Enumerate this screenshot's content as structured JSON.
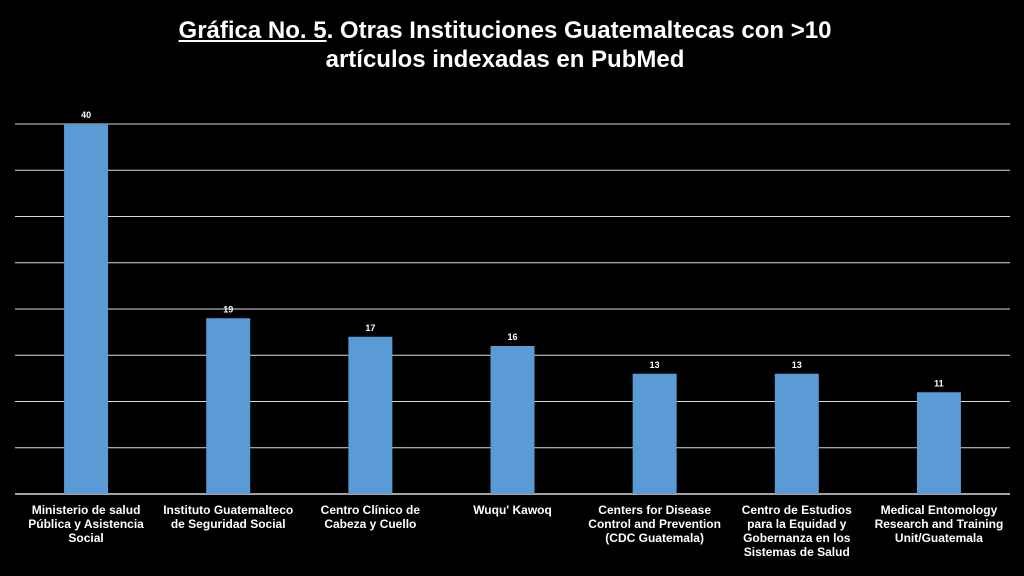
{
  "title": {
    "part_underlined": "Gráfica No. 5",
    "part_line1_rest": ". Otras Instituciones Guatemaltecas con >10",
    "line2": "artículos indexadas en PubMed"
  },
  "colors": {
    "background": "#000000",
    "bar": "#5b9bd5",
    "grid": "#d9d9d9",
    "text": "#ffffff"
  },
  "chart_data": {
    "type": "bar",
    "title": "Gráfica No. 5. Otras Instituciones Guatemaltecas con >10 artículos indexadas en PubMed",
    "categories": [
      "Ministerio de salud Pública y Asistencia Social",
      "Instituto Guatemalteco de Seguridad Social",
      "Centro Clínico de Cabeza y Cuello",
      "Wuqu' Kawoq",
      "Centers for Disease Control and Prevention (CDC Guatemala)",
      "Centro de Estudios para la Equidad y Gobernanza en los Sistemas de Salud",
      "Medical Entomology Research and Training Unit/Guatemala"
    ],
    "values": [
      40,
      19,
      17,
      16,
      13,
      13,
      11
    ],
    "xlabel": "",
    "ylabel": "",
    "ylim": [
      0,
      40
    ],
    "grid_step": 5,
    "grid": true,
    "data_labels": true,
    "legend": "none"
  }
}
